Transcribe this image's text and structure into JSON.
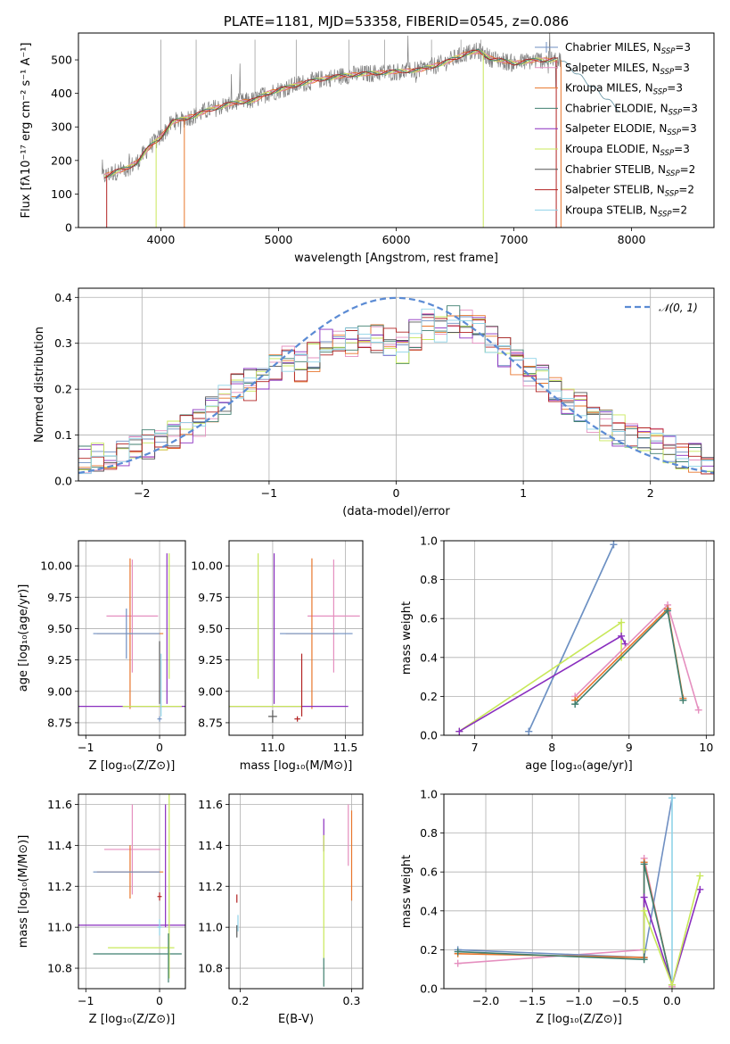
{
  "colors": {
    "chabrier_miles": "#6f8fc2",
    "salpeter_miles": "#e58fbf",
    "kroupa_miles": "#e8762c",
    "chabrier_elodie": "#3f7f6f",
    "salpeter_elodie": "#8a2fbf",
    "kroupa_elodie": "#c8e85a",
    "chabrier_stelib": "#555555",
    "salpeter_stelib": "#b22222",
    "kroupa_stelib": "#8fd3e8",
    "normal": "#5b8bd4",
    "data": "#808080"
  },
  "chart_data": [
    {
      "id": "spectrum",
      "type": "line",
      "title": "PLATE=1181, MJD=53358, FIBERID=0545, z=0.086",
      "xlabel": "wavelength [Angstrom, rest frame]",
      "ylabel": "Flux [fλ10⁻¹⁷ erg cm⁻² s⁻¹ A⁻¹]",
      "xlim": [
        3300,
        8700
      ],
      "ylim": [
        0,
        580
      ],
      "xticks": [
        4000,
        5000,
        6000,
        7000,
        8000
      ],
      "yticks": [
        0,
        100,
        200,
        300,
        400,
        500
      ],
      "continuum": {
        "x": [
          3500,
          3600,
          3700,
          3800,
          3900,
          4000,
          4100,
          4200,
          4300,
          4400,
          4500,
          4600,
          4700,
          4800,
          4900,
          5000,
          5200,
          5400,
          5600,
          5800,
          6000,
          6200,
          6400,
          6600,
          6700,
          6800,
          7000,
          7200,
          7400
        ],
        "y": [
          150,
          165,
          175,
          195,
          240,
          270,
          315,
          325,
          335,
          350,
          360,
          370,
          375,
          380,
          400,
          410,
          430,
          445,
          455,
          460,
          465,
          470,
          490,
          520,
          525,
          505,
          490,
          500,
          500
        ]
      },
      "legend": {
        "placement": "right",
        "entries": [
          {
            "label": "Chabrier MILES, N",
            "sub": "SSP",
            "tail": "=3",
            "color_key": "chabrier_miles"
          },
          {
            "label": "Salpeter MILES, N",
            "sub": "SSP",
            "tail": "=3",
            "color_key": "salpeter_miles"
          },
          {
            "label": "Kroupa MILES, N",
            "sub": "SSP",
            "tail": "=3",
            "color_key": "kroupa_miles"
          },
          {
            "label": "Chabrier ELODIE, N",
            "sub": "SSP",
            "tail": "=3",
            "color_key": "chabrier_elodie"
          },
          {
            "label": "Salpeter ELODIE, N",
            "sub": "SSP",
            "tail": "=3",
            "color_key": "salpeter_elodie"
          },
          {
            "label": "Kroupa ELODIE, N",
            "sub": "SSP",
            "tail": "=3",
            "color_key": "kroupa_elodie"
          },
          {
            "label": "Chabrier STELIB, N",
            "sub": "SSP",
            "tail": "=2",
            "color_key": "chabrier_stelib"
          },
          {
            "label": "Salpeter STELIB, N",
            "sub": "SSP",
            "tail": "=2",
            "color_key": "salpeter_stelib"
          },
          {
            "label": "Kroupa STELIB, N",
            "sub": "SSP",
            "tail": "=2",
            "color_key": "kroupa_stelib"
          }
        ]
      }
    },
    {
      "id": "residuals",
      "type": "line",
      "xlabel": "(data-model)/error",
      "ylabel": "Normed distribution",
      "xlim": [
        -2.5,
        2.5
      ],
      "ylim": [
        0,
        0.42
      ],
      "xticks": [
        -2,
        -1,
        0,
        1,
        2
      ],
      "yticks": [
        0.0,
        0.1,
        0.2,
        0.3,
        0.4
      ],
      "legend": {
        "placement": "top-right",
        "entries": [
          {
            "label": "𝒩(0, 1)",
            "color_key": "normal"
          }
        ]
      },
      "histogram_bins": [
        -2.5,
        -2.4,
        -2.3,
        -2.2,
        -2.1,
        -2.0,
        -1.9,
        -1.8,
        -1.7,
        -1.6,
        -1.5,
        -1.4,
        -1.3,
        -1.2,
        -1.1,
        -1.0,
        -0.9,
        -0.8,
        -0.7,
        -0.6,
        -0.5,
        -0.4,
        -0.3,
        -0.2,
        -0.1,
        0.0,
        0.1,
        0.2,
        0.3,
        0.4,
        0.5,
        0.6,
        0.7,
        0.8,
        0.9,
        1.0,
        1.1,
        1.2,
        1.3,
        1.4,
        1.5,
        1.6,
        1.7,
        1.8,
        1.9,
        2.0,
        2.1,
        2.2,
        2.3,
        2.4,
        2.5
      ],
      "histogram_base": [
        0.045,
        0.05,
        0.055,
        0.06,
        0.07,
        0.08,
        0.09,
        0.1,
        0.11,
        0.13,
        0.16,
        0.18,
        0.2,
        0.21,
        0.23,
        0.24,
        0.26,
        0.25,
        0.27,
        0.3,
        0.31,
        0.3,
        0.32,
        0.31,
        0.3,
        0.29,
        0.32,
        0.34,
        0.33,
        0.35,
        0.34,
        0.33,
        0.31,
        0.28,
        0.26,
        0.24,
        0.22,
        0.2,
        0.18,
        0.16,
        0.13,
        0.12,
        0.11,
        0.1,
        0.09,
        0.08,
        0.07,
        0.06,
        0.05,
        0.045
      ]
    },
    {
      "id": "age_vs_Z",
      "type": "scatter",
      "xlabel": "Z [log₁₀(Z/Z⊙)]",
      "ylabel": "age  [log₁₀(age/yr)]",
      "xlim": [
        -1.1,
        0.35
      ],
      "ylim": [
        8.65,
        10.2
      ],
      "xticks": [
        -1,
        0
      ],
      "yticks": [
        8.75,
        9.0,
        9.25,
        9.5,
        9.75,
        10.0
      ],
      "points": [
        {
          "color_key": "salpeter_miles",
          "x": -0.37,
          "y": 9.6,
          "xerr": 0.35,
          "yerr": 0.45
        },
        {
          "color_key": "kroupa_miles",
          "x": -0.4,
          "y": 9.46,
          "xerr": 0.45,
          "yerr": 0.6
        },
        {
          "color_key": "chabrier_miles",
          "x": -0.45,
          "y": 9.46,
          "xerr": 0.45,
          "yerr": 0.2
        },
        {
          "color_key": "salpeter_elodie",
          "x": 0.1,
          "y": 9.5,
          "xerr": 0.0,
          "yerr": 0.6
        },
        {
          "color_key": "kroupa_elodie",
          "x": 0.13,
          "y": 9.6,
          "xerr": 0.0,
          "yerr": 0.5
        },
        {
          "color_key": "salpeter_elodie",
          "x": -0.05,
          "y": 8.88,
          "xerr": 1.05,
          "yerr": 0.0
        },
        {
          "color_key": "kroupa_elodie",
          "x": -0.1,
          "y": 8.88,
          "xerr": 0.4,
          "yerr": 0.0
        },
        {
          "color_key": "chabrier_stelib",
          "x": 0.0,
          "y": 9.15,
          "xerr": 0.0,
          "yerr": 0.25
        },
        {
          "color_key": "kroupa_stelib",
          "x": 0.02,
          "y": 9.05,
          "xerr": 0.0,
          "yerr": 0.25
        },
        {
          "color_key": "chabrier_miles",
          "x": 0.0,
          "y": 8.78,
          "xerr": 0.03,
          "yerr": 0.0
        }
      ]
    },
    {
      "id": "age_vs_mass",
      "type": "scatter",
      "xlabel": "mass [log₁₀(M/M⊙)]",
      "ylabel": "",
      "xlim": [
        10.7,
        11.62
      ],
      "ylim": [
        8.65,
        10.2
      ],
      "xticks": [
        11.0,
        11.5
      ],
      "yticks": [
        8.75,
        9.0,
        9.25,
        9.5,
        9.75,
        10.0
      ],
      "points": [
        {
          "color_key": "salpeter_miles",
          "x": 11.42,
          "y": 9.6,
          "xerr": 0.18,
          "yerr": 0.45
        },
        {
          "color_key": "kroupa_miles",
          "x": 11.27,
          "y": 9.46,
          "xerr": 0.18,
          "yerr": 0.6
        },
        {
          "color_key": "chabrier_miles",
          "x": 11.3,
          "y": 9.46,
          "xerr": 0.25,
          "yerr": 0.0
        },
        {
          "color_key": "salpeter_elodie",
          "x": 11.01,
          "y": 9.5,
          "xerr": 0.0,
          "yerr": 0.6
        },
        {
          "color_key": "kroupa_elodie",
          "x": 10.9,
          "y": 9.6,
          "xerr": 0.0,
          "yerr": 0.5
        },
        {
          "color_key": "salpeter_elodie",
          "x": 11.1,
          "y": 8.88,
          "xerr": 0.42,
          "yerr": 0.0
        },
        {
          "color_key": "kroupa_elodie",
          "x": 10.95,
          "y": 8.88,
          "xerr": 0.25,
          "yerr": 0.0
        },
        {
          "color_key": "chabrier_stelib",
          "x": 11.0,
          "y": 8.8,
          "xerr": 0.03,
          "yerr": 0.05
        },
        {
          "color_key": "salpeter_stelib",
          "x": 11.2,
          "y": 9.05,
          "xerr": 0.0,
          "yerr": 0.25
        },
        {
          "color_key": "salpeter_stelib",
          "x": 11.17,
          "y": 8.78,
          "xerr": 0.02,
          "yerr": 0.0
        }
      ]
    },
    {
      "id": "weight_vs_age",
      "type": "line",
      "xlabel": "age  [log₁₀(age/yr)]",
      "ylabel": "mass weight",
      "xlim": [
        6.6,
        10.1
      ],
      "ylim": [
        0,
        1.0
      ],
      "xticks": [
        7,
        8,
        9,
        10
      ],
      "yticks": [
        0.0,
        0.2,
        0.4,
        0.6,
        0.8,
        1.0
      ],
      "series": [
        {
          "color_key": "kroupa_stelib",
          "x": [
            7.7,
            8.8
          ],
          "y": [
            0.02,
            0.98
          ]
        },
        {
          "color_key": "chabrier_miles",
          "x": [
            7.7,
            8.8
          ],
          "y": [
            0.02,
            0.98
          ]
        },
        {
          "color_key": "kroupa_elodie",
          "x": [
            6.8,
            8.9,
            8.9
          ],
          "y": [
            0.02,
            0.58,
            0.4
          ]
        },
        {
          "color_key": "salpeter_elodie",
          "x": [
            6.8,
            8.9,
            8.95
          ],
          "y": [
            0.02,
            0.51,
            0.47
          ]
        },
        {
          "color_key": "salpeter_miles",
          "x": [
            8.3,
            9.5,
            9.9
          ],
          "y": [
            0.2,
            0.67,
            0.13
          ]
        },
        {
          "color_key": "kroupa_miles",
          "x": [
            8.3,
            9.5,
            9.7
          ],
          "y": [
            0.18,
            0.65,
            0.19
          ]
        },
        {
          "color_key": "chabrier_elodie",
          "x": [
            8.3,
            9.5,
            9.7
          ],
          "y": [
            0.16,
            0.64,
            0.18
          ]
        }
      ]
    },
    {
      "id": "mass_vs_Z",
      "type": "scatter",
      "xlabel": "Z [log₁₀(Z/Z⊙)]",
      "ylabel": "mass [log₁₀(M/M⊙)]",
      "xlim": [
        -1.1,
        0.35
      ],
      "ylim": [
        10.7,
        11.65
      ],
      "xticks": [
        -1,
        0
      ],
      "yticks": [
        10.8,
        11.0,
        11.2,
        11.4,
        11.6
      ],
      "points": [
        {
          "color_key": "salpeter_miles",
          "x": -0.37,
          "y": 11.38,
          "xerr": 0.38,
          "yerr": 0.22
        },
        {
          "color_key": "kroupa_miles",
          "x": -0.4,
          "y": 11.27,
          "xerr": 0.45,
          "yerr": 0.13
        },
        {
          "color_key": "chabrier_miles",
          "x": -0.45,
          "y": 11.27,
          "xerr": 0.45,
          "yerr": 0.0
        },
        {
          "color_key": "salpeter_elodie",
          "x": -0.05,
          "y": 11.01,
          "xerr": 1.05,
          "yerr": 0.0
        },
        {
          "color_key": "kroupa_elodie",
          "x": -0.25,
          "y": 10.9,
          "xerr": 0.45,
          "yerr": 0.0
        },
        {
          "color_key": "chabrier_elodie",
          "x": -0.3,
          "y": 10.87,
          "xerr": 0.6,
          "yerr": 0.0
        },
        {
          "color_key": "kroupa_elodie",
          "x": 0.13,
          "y": 11.2,
          "xerr": 0.0,
          "yerr": 0.45
        },
        {
          "color_key": "salpeter_elodie",
          "x": 0.08,
          "y": 11.3,
          "xerr": 0.0,
          "yerr": 0.3
        },
        {
          "color_key": "chabrier_elodie",
          "x": 0.12,
          "y": 10.85,
          "xerr": 0.0,
          "yerr": 0.12
        },
        {
          "color_key": "salpeter_stelib",
          "x": 0.0,
          "y": 11.15,
          "xerr": 0.03,
          "yerr": 0.02
        },
        {
          "color_key": "kroupa_stelib",
          "x": 0.0,
          "y": 11.0,
          "xerr": 0.03,
          "yerr": 0.04
        }
      ]
    },
    {
      "id": "mass_vs_ebv",
      "type": "scatter",
      "xlabel": "E(B-V)",
      "ylabel": "",
      "xlim": [
        0.19,
        0.31
      ],
      "ylim": [
        10.7,
        11.65
      ],
      "xticks": [
        0.2,
        0.3
      ],
      "yticks": [
        10.8,
        11.0,
        11.2,
        11.4,
        11.6
      ],
      "points": [
        {
          "color_key": "salpeter_miles",
          "x": 0.297,
          "y": 11.45,
          "xerr": 0.0,
          "yerr": 0.15
        },
        {
          "color_key": "kroupa_miles",
          "x": 0.3,
          "y": 11.35,
          "xerr": 0.0,
          "yerr": 0.22
        },
        {
          "color_key": "salpeter_elodie",
          "x": 0.275,
          "y": 11.45,
          "xerr": 0.0,
          "yerr": 0.08
        },
        {
          "color_key": "kroupa_elodie",
          "x": 0.275,
          "y": 11.15,
          "xerr": 0.0,
          "yerr": 0.3
        },
        {
          "color_key": "chabrier_elodie",
          "x": 0.275,
          "y": 10.78,
          "xerr": 0.0,
          "yerr": 0.07
        },
        {
          "color_key": "salpeter_stelib",
          "x": 0.197,
          "y": 11.14,
          "xerr": 0.0,
          "yerr": 0.02
        },
        {
          "color_key": "chabrier_stelib",
          "x": 0.197,
          "y": 10.98,
          "xerr": 0.0,
          "yerr": 0.03
        },
        {
          "color_key": "kroupa_stelib",
          "x": 0.198,
          "y": 11.02,
          "xerr": 0.0,
          "yerr": 0.04
        }
      ]
    },
    {
      "id": "weight_vs_Z",
      "type": "line",
      "xlabel": "Z [log₁₀(Z/Z⊙)]",
      "ylabel": "mass weight",
      "xlim": [
        -2.45,
        0.45
      ],
      "ylim": [
        0,
        1.0
      ],
      "xticks": [
        -2.0,
        -1.5,
        -1.0,
        -0.5,
        0.0
      ],
      "yticks": [
        0.0,
        0.2,
        0.4,
        0.6,
        0.8,
        1.0
      ],
      "series": [
        {
          "color_key": "salpeter_miles",
          "x": [
            -2.3,
            -0.3,
            -0.3,
            0.0
          ],
          "y": [
            0.13,
            0.2,
            0.67,
            0.01
          ]
        },
        {
          "color_key": "chabrier_miles",
          "x": [
            -2.3,
            -0.3,
            0.0
          ],
          "y": [
            0.2,
            0.16,
            0.98
          ]
        },
        {
          "color_key": "kroupa_miles",
          "x": [
            -2.3,
            -0.3,
            -0.3,
            0.0
          ],
          "y": [
            0.18,
            0.16,
            0.65,
            0.02
          ]
        },
        {
          "color_key": "chabrier_elodie",
          "x": [
            -2.3,
            -0.3,
            -0.3,
            0.0
          ],
          "y": [
            0.19,
            0.15,
            0.64,
            0.02
          ]
        },
        {
          "color_key": "kroupa_stelib",
          "x": [
            0.0,
            0.0
          ],
          "y": [
            0.02,
            0.98
          ]
        },
        {
          "color_key": "salpeter_elodie",
          "x": [
            -0.3,
            -0.3,
            0.0,
            0.3
          ],
          "y": [
            0.2,
            0.47,
            0.02,
            0.51
          ]
        },
        {
          "color_key": "kroupa_elodie",
          "x": [
            -0.3,
            -0.3,
            0.0,
            0.3
          ],
          "y": [
            0.2,
            0.4,
            0.02,
            0.58
          ]
        }
      ]
    }
  ]
}
